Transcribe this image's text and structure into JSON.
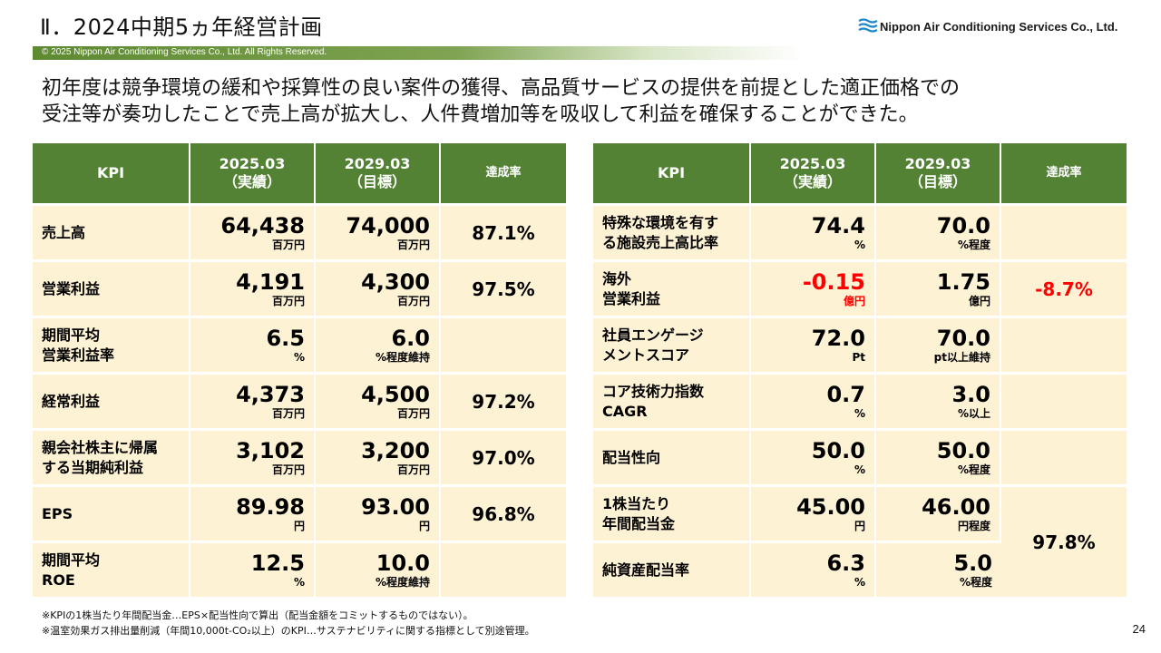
{
  "title": "Ⅱ．2024中期5ヵ年経営計画",
  "logo": {
    "text": "Nippon Air Conditioning Services Co., Ltd.",
    "icon": "wave-logo-icon",
    "color": "#1e88c8"
  },
  "copyright": "© 2025 Nippon Air Conditioning Services Co., Ltd. All Rights Reserved.",
  "lead": [
    "初年度は競争環境の緩和や採算性の良い案件の獲得、高品質サービスの提供を前提とした適正価格での",
    "受注等が奏功したことで売上高が拡大し、人件費増加等を吸収して利益を確保することができた。"
  ],
  "colors": {
    "header_bg": "#548235",
    "cell_bg": "#fdf2d4",
    "negative": "#ff0000"
  },
  "headers": {
    "kpi": "KPI",
    "actual_1": "2025.03",
    "actual_2": "（実績）",
    "target_1": "2029.03",
    "target_2": "（目標）",
    "rate": "達成率"
  },
  "left_rows": [
    {
      "name": [
        "売上高"
      ],
      "actual": "64,438",
      "actual_unit": "百万円",
      "target": "74,000",
      "target_unit": "百万円",
      "rate": "87.1%"
    },
    {
      "name": [
        "営業利益"
      ],
      "actual": "4,191",
      "actual_unit": "百万円",
      "target": "4,300",
      "target_unit": "百万円",
      "rate": "97.5%"
    },
    {
      "name": [
        "期間平均",
        "営業利益率"
      ],
      "actual": "6.5",
      "actual_unit": "%",
      "target": "6.0",
      "target_unit": "%程度維持",
      "rate": ""
    },
    {
      "name": [
        "経常利益"
      ],
      "actual": "4,373",
      "actual_unit": "百万円",
      "target": "4,500",
      "target_unit": "百万円",
      "rate": "97.2%"
    },
    {
      "name": [
        "親会社株主に帰属",
        "する当期純利益"
      ],
      "actual": "3,102",
      "actual_unit": "百万円",
      "target": "3,200",
      "target_unit": "百万円",
      "rate": "97.0%"
    },
    {
      "name": [
        "EPS"
      ],
      "actual": "89.98",
      "actual_unit": "円",
      "target": "93.00",
      "target_unit": "円",
      "rate": "96.8%"
    },
    {
      "name": [
        "期間平均",
        "ROE"
      ],
      "actual": "12.5",
      "actual_unit": "%",
      "target": "10.0",
      "target_unit": "%程度維持",
      "rate": ""
    }
  ],
  "right_rows": [
    {
      "name": [
        "特殊な環境を有す",
        "る施設売上高比率"
      ],
      "actual": "74.4",
      "actual_unit": "%",
      "target": "70.0",
      "target_unit": "%程度",
      "rate": ""
    },
    {
      "name": [
        "海外",
        "営業利益"
      ],
      "actual": "-0.15",
      "actual_unit": "億円",
      "actual_negative": true,
      "target": "1.75",
      "target_unit": "億円",
      "rate": "-8.7%",
      "rate_negative": true
    },
    {
      "name": [
        "社員エンゲージ",
        "メントスコア"
      ],
      "actual": "72.0",
      "actual_unit": "Pt",
      "target": "70.0",
      "target_unit": "pt以上維持",
      "rate": ""
    },
    {
      "name": [
        "コア技術力指数",
        "CAGR"
      ],
      "actual": "0.7",
      "actual_unit": "%",
      "target": "3.0",
      "target_unit": "%以上",
      "rate": ""
    },
    {
      "name": [
        "配当性向"
      ],
      "actual": "50.0",
      "actual_unit": "%",
      "target": "50.0",
      "target_unit": "%程度",
      "rate": ""
    },
    {
      "name": [
        "1株当たり",
        "年間配当金"
      ],
      "actual": "45.00",
      "actual_unit": "円",
      "target": "46.00",
      "target_unit": "円程度",
      "rate": "97.8%",
      "rate_span": 2
    },
    {
      "name": [
        "純資産配当率"
      ],
      "actual": "6.3",
      "actual_unit": "%",
      "target": "5.0",
      "target_unit": "%程度",
      "rate": "",
      "rate_covered": true
    }
  ],
  "notes": [
    "※KPIの1株当たり年間配当金…EPS×配当性向で算出（配当金額をコミットするものではない）。",
    "※温室効果ガス排出量削減（年間10,000t-CO₂以上）のKPI…サステナビリティに関する指標として別途管理。"
  ],
  "page_number": "24"
}
